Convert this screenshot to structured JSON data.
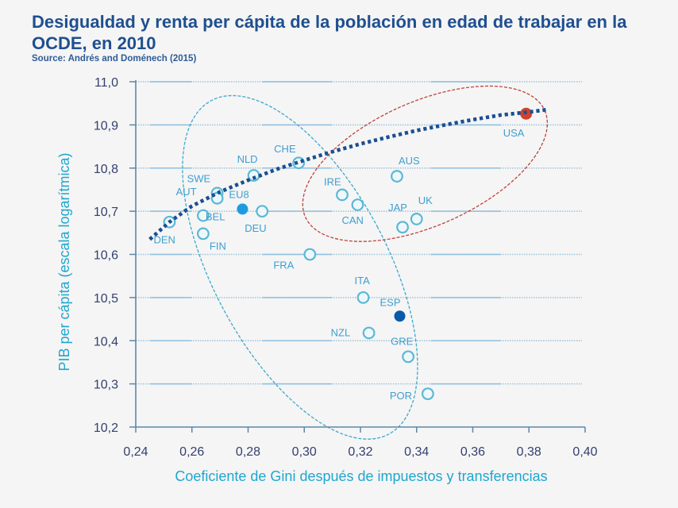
{
  "chart_data": {
    "type": "scatter",
    "title": "Desigualdad y renta per cápita de la población en edad de trabajar en la OCDE, en 2010",
    "subtitle": "Source: Andrés and Doménech (2015)",
    "xlabel": "Coeficiente de Gini después de impuestos y transferencias",
    "ylabel": "PIB per cápita (escala logarítmica)",
    "xlim": [
      0.24,
      0.4
    ],
    "ylim": [
      10.2,
      11.0
    ],
    "x_ticks": [
      0.24,
      0.26,
      0.28,
      0.3,
      0.32,
      0.34,
      0.36,
      0.38,
      0.4
    ],
    "x_tick_labels": [
      "0,24",
      "0,26",
      "0,28",
      "0,30",
      "0,32",
      "0,34",
      "0,36",
      "0,38",
      "0,40"
    ],
    "y_ticks": [
      10.2,
      10.3,
      10.4,
      10.5,
      10.6,
      10.7,
      10.8,
      10.9,
      11.0
    ],
    "y_tick_labels": [
      "10,2",
      "10,3",
      "10,4",
      "10,5",
      "10,6",
      "10,7",
      "10,8",
      "10,9",
      "11,0"
    ],
    "grid": true,
    "colors": {
      "open_marker": "#5ab8d6",
      "eu8": "#1e9be0",
      "esp": "#0a5aab",
      "usa": "#d0412e",
      "trend": "#1b4f92",
      "blue_cluster": "#3ba9cd",
      "red_cluster": "#c0423a"
    },
    "points": [
      {
        "label": "DEN",
        "x": 0.252,
        "y": 10.675,
        "style": "open"
      },
      {
        "label": "BEL",
        "x": 0.264,
        "y": 10.69,
        "style": "open"
      },
      {
        "label": "FIN",
        "x": 0.264,
        "y": 10.648,
        "style": "open"
      },
      {
        "label": "SWE",
        "x": 0.269,
        "y": 10.742,
        "style": "open"
      },
      {
        "label": "AUT",
        "x": 0.269,
        "y": 10.73,
        "style": "open"
      },
      {
        "label": "EU8",
        "x": 0.278,
        "y": 10.705,
        "style": "eu8"
      },
      {
        "label": "NLD",
        "x": 0.282,
        "y": 10.783,
        "style": "open"
      },
      {
        "label": "DEU",
        "x": 0.285,
        "y": 10.7,
        "style": "open"
      },
      {
        "label": "CHE",
        "x": 0.298,
        "y": 10.812,
        "style": "open"
      },
      {
        "label": "FRA",
        "x": 0.302,
        "y": 10.6,
        "style": "open"
      },
      {
        "label": "IRE",
        "x": 0.3135,
        "y": 10.738,
        "style": "open"
      },
      {
        "label": "CAN",
        "x": 0.319,
        "y": 10.715,
        "style": "open"
      },
      {
        "label": "ITA",
        "x": 0.321,
        "y": 10.5,
        "style": "open"
      },
      {
        "label": "NZL",
        "x": 0.323,
        "y": 10.418,
        "style": "open"
      },
      {
        "label": "AUS",
        "x": 0.333,
        "y": 10.781,
        "style": "open"
      },
      {
        "label": "ESP",
        "x": 0.334,
        "y": 10.457,
        "style": "esp"
      },
      {
        "label": "JAP",
        "x": 0.335,
        "y": 10.663,
        "style": "open"
      },
      {
        "label": "GRE",
        "x": 0.337,
        "y": 10.363,
        "style": "open"
      },
      {
        "label": "UK",
        "x": 0.34,
        "y": 10.682,
        "style": "open"
      },
      {
        "label": "POR",
        "x": 0.344,
        "y": 10.277,
        "style": "open"
      },
      {
        "label": "USA",
        "x": 0.379,
        "y": 10.926,
        "style": "usa"
      }
    ],
    "trendline": {
      "type": "logarithmic",
      "x": [
        0.245,
        0.252,
        0.26,
        0.27,
        0.28,
        0.29,
        0.3,
        0.31,
        0.32,
        0.33,
        0.34,
        0.35,
        0.36,
        0.37,
        0.38,
        0.386
      ],
      "y": [
        10.635,
        10.675,
        10.712,
        10.745,
        10.772,
        10.797,
        10.818,
        10.838,
        10.856,
        10.872,
        10.887,
        10.9,
        10.912,
        10.923,
        10.93,
        10.935
      ]
    },
    "clusters": [
      {
        "name": "blue-cluster",
        "style": "dashed",
        "center": {
          "x": 0.2985,
          "y": 10.57
        },
        "note": "encloses European and low-inequality countries"
      },
      {
        "name": "red-cluster",
        "style": "dashed",
        "center": {
          "x": 0.343,
          "y": 10.81
        },
        "note": "encloses Anglo-Saxon/high-income countries incl. USA"
      }
    ]
  }
}
